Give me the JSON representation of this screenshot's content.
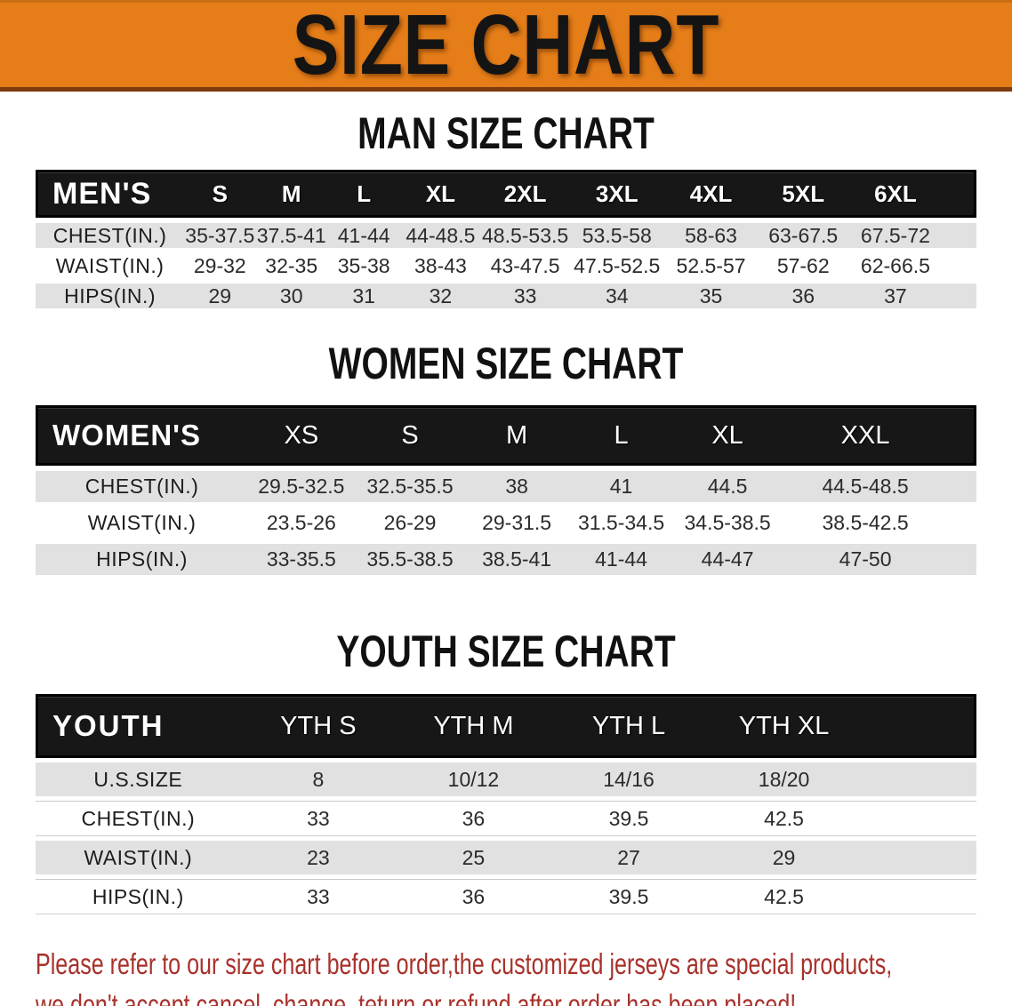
{
  "banner": {
    "title": "SIZE CHART"
  },
  "headings": {
    "men": "MAN SIZE CHART",
    "women": "WOMEN SIZE CHART",
    "youth": "YOUTH SIZE CHART"
  },
  "tables": {
    "men": {
      "label": "MEN'S",
      "columns": [
        "S",
        "M",
        "L",
        "XL",
        "2XL",
        "3XL",
        "4XL",
        "5XL",
        "6XL"
      ],
      "rows": [
        {
          "label": "CHEST(IN.)",
          "values": [
            "35-37.5",
            "37.5-41",
            "41-44",
            "44-48.5",
            "48.5-53.5",
            "53.5-58",
            "58-63",
            "63-67.5",
            "67.5-72"
          ]
        },
        {
          "label": "WAIST(IN.)",
          "values": [
            "29-32",
            "32-35",
            "35-38",
            "38-43",
            "43-47.5",
            "47.5-52.5",
            "52.5-57",
            "57-62",
            "62-66.5"
          ]
        },
        {
          "label": "HIPS(IN.)",
          "values": [
            "29",
            "30",
            "31",
            "32",
            "33",
            "34",
            "35",
            "36",
            "37"
          ]
        }
      ]
    },
    "women": {
      "label": "WOMEN'S",
      "columns": [
        "XS",
        "S",
        "M",
        "L",
        "XL",
        "XXL"
      ],
      "rows": [
        {
          "label": "CHEST(IN.)",
          "values": [
            "29.5-32.5",
            "32.5-35.5",
            "38",
            "41",
            "44.5",
            "44.5-48.5"
          ]
        },
        {
          "label": "WAIST(IN.)",
          "values": [
            "23.5-26",
            "26-29",
            "29-31.5",
            "31.5-34.5",
            "34.5-38.5",
            "38.5-42.5"
          ]
        },
        {
          "label": "HIPS(IN.)",
          "values": [
            "33-35.5",
            "35.5-38.5",
            "38.5-41",
            "41-44",
            "44-47",
            "47-50"
          ]
        }
      ]
    },
    "youth": {
      "label": "YOUTH",
      "columns": [
        "YTH S",
        "YTH M",
        "YTH L",
        "YTH XL"
      ],
      "rows": [
        {
          "label": "U.S.SIZE",
          "values": [
            "8",
            "10/12",
            "14/16",
            "18/20"
          ]
        },
        {
          "label": "CHEST(IN.)",
          "values": [
            "33",
            "36",
            "39.5",
            "42.5"
          ]
        },
        {
          "label": "WAIST(IN.)",
          "values": [
            "23",
            "25",
            "27",
            "29"
          ]
        },
        {
          "label": "HIPS(IN.)",
          "values": [
            "33",
            "36",
            "39.5",
            "42.5"
          ]
        }
      ]
    }
  },
  "note": {
    "line1": "Please refer to our size chart before order,the customized jerseys are special products,",
    "line2": "we don't accept cancel, change, teturn or refund after order has been placed!"
  },
  "colors": {
    "banner_bg": "#E57D18",
    "banner_edge": "#7C3A0E",
    "table_header_bg": "#171717",
    "row_gray": "#E1E1E1",
    "note_red": "#A8312B"
  }
}
